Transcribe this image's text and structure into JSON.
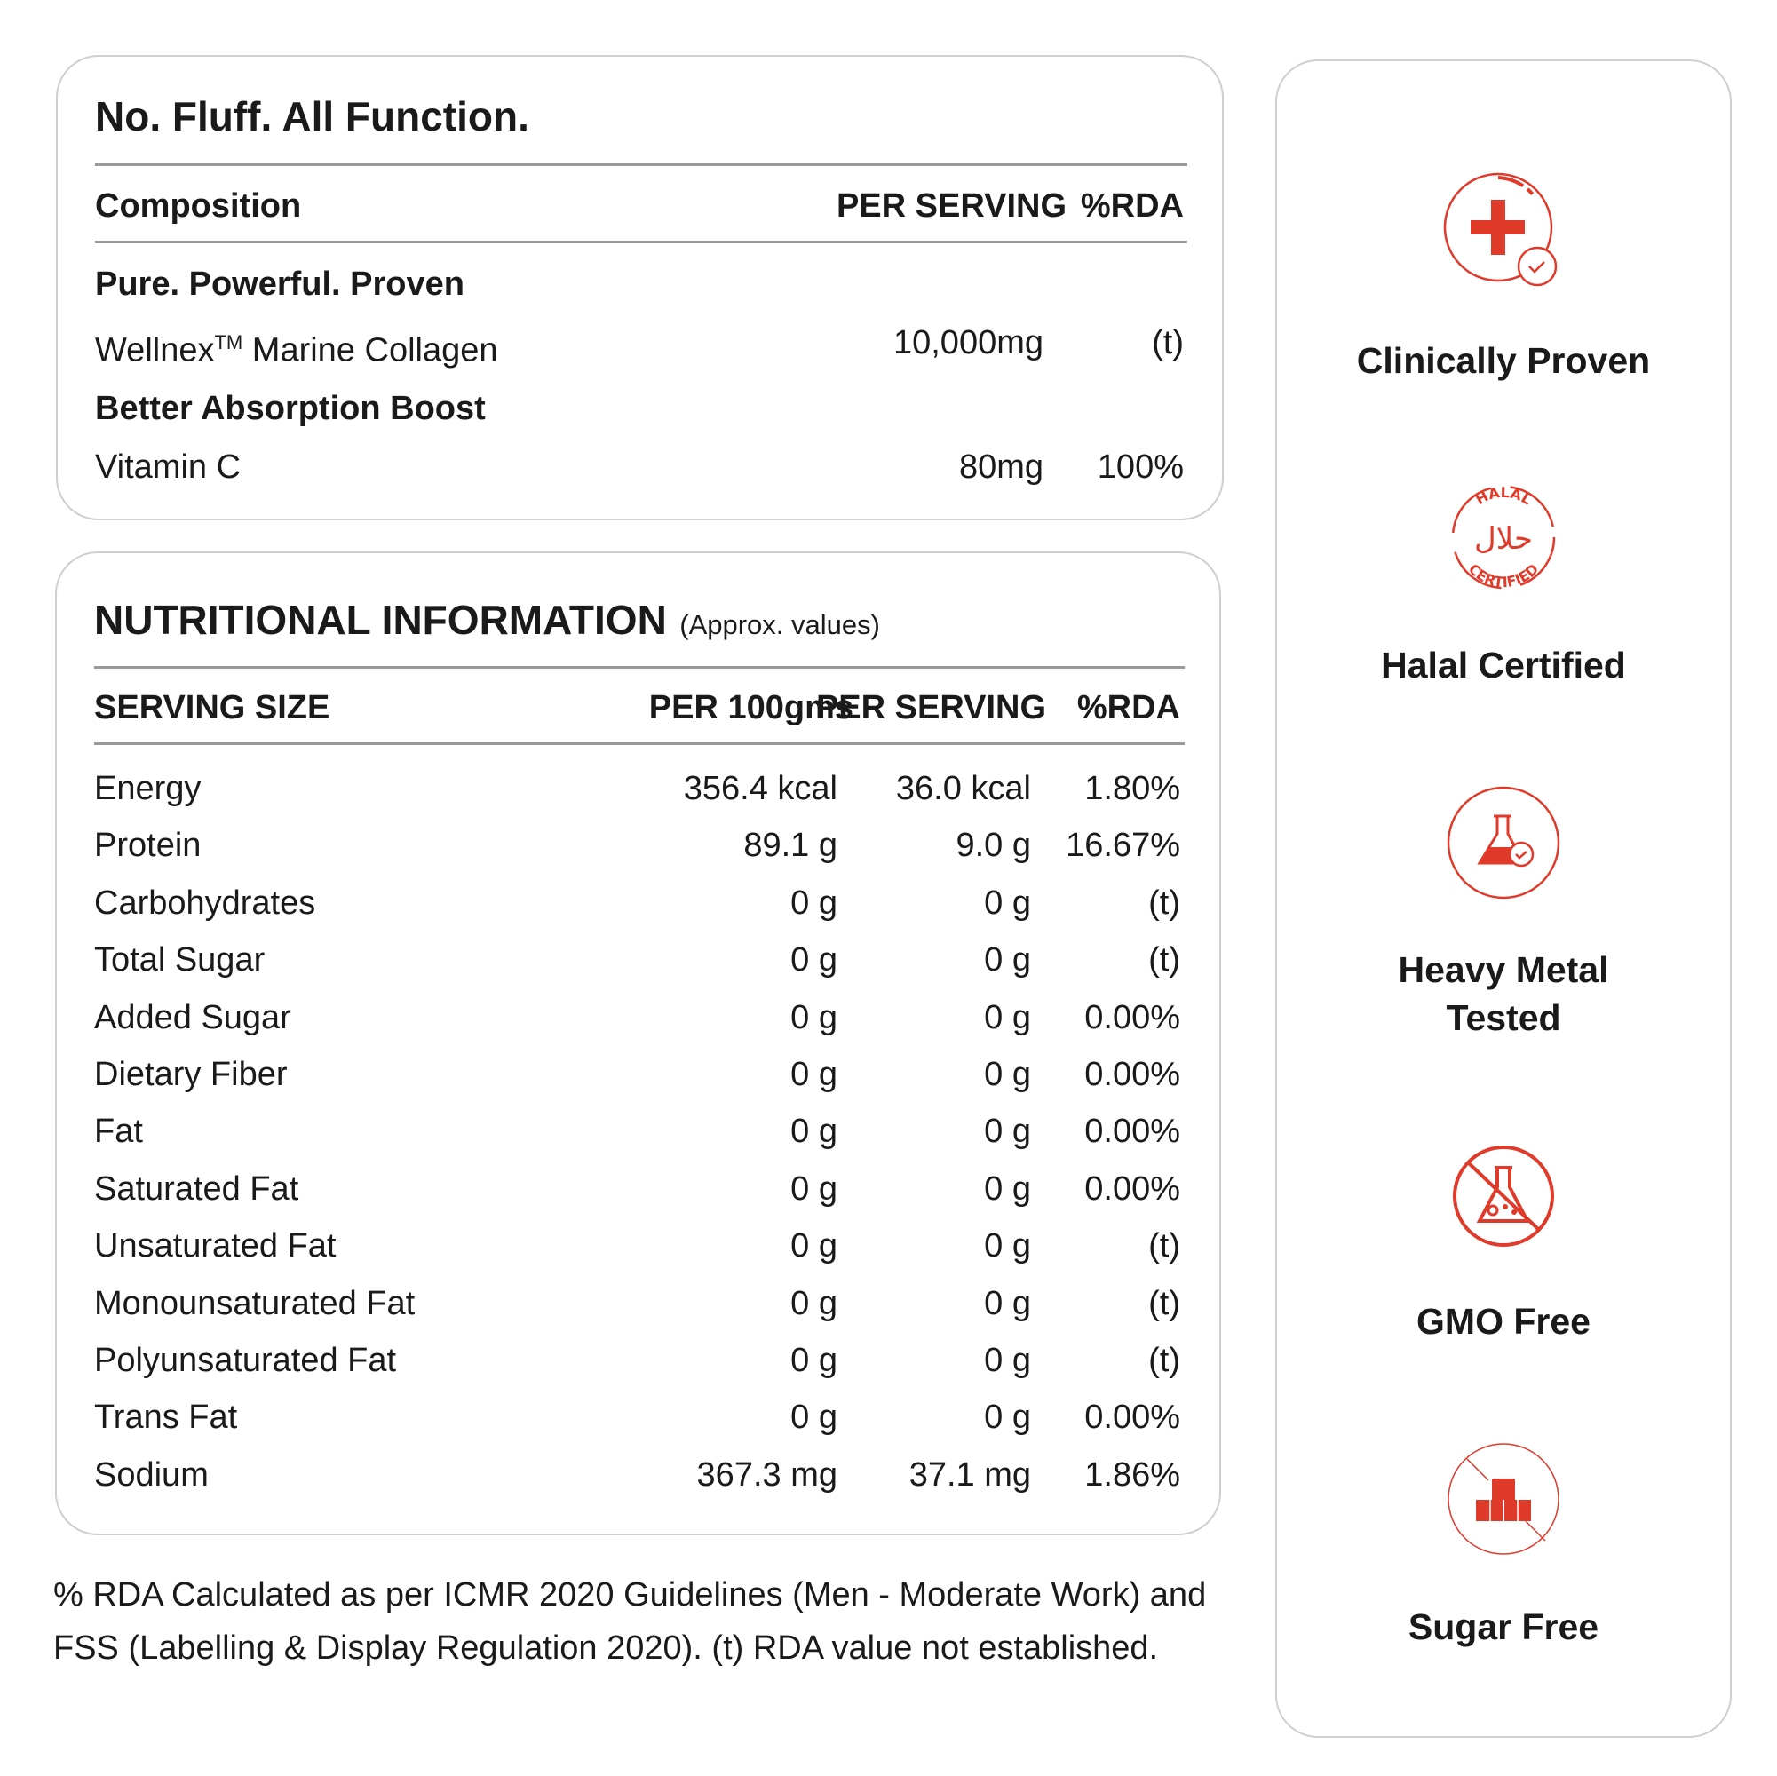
{
  "composition_card": {
    "title": "No. Fluff. All Function.",
    "headers": {
      "name": "Composition",
      "per_serving": "PER SERVING",
      "rda": "%RDA"
    },
    "groups": [
      {
        "heading": "Pure. Powerful. Proven",
        "item": {
          "name": "Wellnex",
          "sup": "TM",
          "name_rest": " Marine Collagen",
          "per_serving": "10,000mg",
          "rda": "(t)"
        }
      },
      {
        "heading": "Better Absorption Boost",
        "item": {
          "name": "Vitamin C",
          "per_serving": "80mg",
          "rda": "100%"
        }
      }
    ]
  },
  "nutrition_card": {
    "title": "NUTRITIONAL INFORMATION",
    "subtitle": "(Approx. values)",
    "headers": {
      "name": "SERVING SIZE",
      "per_100": "PER 100gms",
      "per_serving": "PER SERVING",
      "rda": "%RDA"
    },
    "rows": [
      {
        "name": "Energy",
        "per_100": "356.4 kcal",
        "per_serving": "36.0 kcal",
        "rda": "1.80%"
      },
      {
        "name": "Protein",
        "per_100": "89.1 g",
        "per_serving": "9.0 g",
        "rda": "16.67%"
      },
      {
        "name": "Carbohydrates",
        "per_100": "0 g",
        "per_serving": "0 g",
        "rda": "(t)"
      },
      {
        "name": "Total Sugar",
        "per_100": "0 g",
        "per_serving": "0 g",
        "rda": "(t)"
      },
      {
        "name": "Added Sugar",
        "per_100": "0 g",
        "per_serving": "0 g",
        "rda": "0.00%"
      },
      {
        "name": "Dietary Fiber",
        "per_100": "0 g",
        "per_serving": "0 g",
        "rda": "0.00%"
      },
      {
        "name": "Fat",
        "per_100": "0 g",
        "per_serving": "0 g",
        "rda": "0.00%"
      },
      {
        "name": "Saturated Fat",
        "per_100": "0 g",
        "per_serving": "0 g",
        "rda": "0.00%"
      },
      {
        "name": "Unsaturated Fat",
        "per_100": "0 g",
        "per_serving": "0 g",
        "rda": "(t)"
      },
      {
        "name": "Monounsaturated Fat",
        "per_100": "0 g",
        "per_serving": "0 g",
        "rda": "(t)"
      },
      {
        "name": "Polyunsaturated Fat",
        "per_100": "0 g",
        "per_serving": "0 g",
        "rda": "(t)"
      },
      {
        "name": "Trans Fat",
        "per_100": "0 g",
        "per_serving": "0 g",
        "rda": "0.00%"
      },
      {
        "name": "Sodium",
        "per_100": "367.3 mg",
        "per_serving": "37.1 mg",
        "rda": "1.86%"
      }
    ]
  },
  "footnote": "% RDA Calculated as per ICMR 2020 Guidelines (Men - Moderate Work) and FSS (Labelling & Display Regulation 2020). (t) RDA value not established.",
  "badges": [
    {
      "label": "Clinically Proven",
      "icon": "medical-cross-check-icon"
    },
    {
      "label": "Halal Certified",
      "icon": "halal-certified-seal-icon",
      "seal_top": "HALAL",
      "seal_bottom": "CERTIFIED",
      "seal_center": "حلال"
    },
    {
      "label": "Heavy Metal Tested",
      "icon": "flask-check-icon"
    },
    {
      "label": "GMO Free",
      "icon": "no-flask-icon"
    },
    {
      "label": "Sugar Free",
      "icon": "no-sugar-cubes-icon"
    }
  ],
  "colors": {
    "accent": "#e03a2a",
    "border": "#cfcfcf",
    "text": "#1a1a1a"
  }
}
